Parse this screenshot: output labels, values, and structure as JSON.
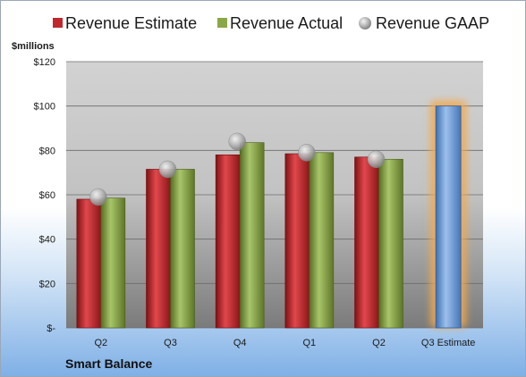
{
  "chart_data": {
    "type": "bar",
    "unit_label": "$millions",
    "categories": [
      "Q2",
      "Q3",
      "Q4",
      "Q1",
      "Q2",
      "Q3 Estimate"
    ],
    "series": [
      {
        "name": "Revenue Estimate",
        "kind": "bar",
        "color": "#c0282d",
        "values": [
          58,
          71.5,
          78,
          78.5,
          77,
          null
        ]
      },
      {
        "name": "Revenue Actual",
        "kind": "bar",
        "color": "#8aa847",
        "values": [
          58.5,
          71.5,
          83.5,
          79,
          76,
          null
        ]
      },
      {
        "name": "Revenue GAAP",
        "kind": "marker",
        "color": "#b8b8b8",
        "values": [
          59,
          71.5,
          84,
          79,
          76,
          null
        ]
      }
    ],
    "highlight": {
      "category_index": 5,
      "value": 100,
      "color": "#6f9fd8",
      "glow": "#f4a94a"
    },
    "yticks": [
      {
        "value": 0,
        "label": "$-"
      },
      {
        "value": 20,
        "label": "$20"
      },
      {
        "value": 40,
        "label": "$40"
      },
      {
        "value": 60,
        "label": "$60"
      },
      {
        "value": 80,
        "label": "$80"
      },
      {
        "value": 100,
        "label": "$100"
      },
      {
        "value": 120,
        "label": "$120"
      }
    ],
    "ylim": [
      0,
      120
    ],
    "grid": true,
    "legend": "top",
    "company": "Smart Balance"
  }
}
